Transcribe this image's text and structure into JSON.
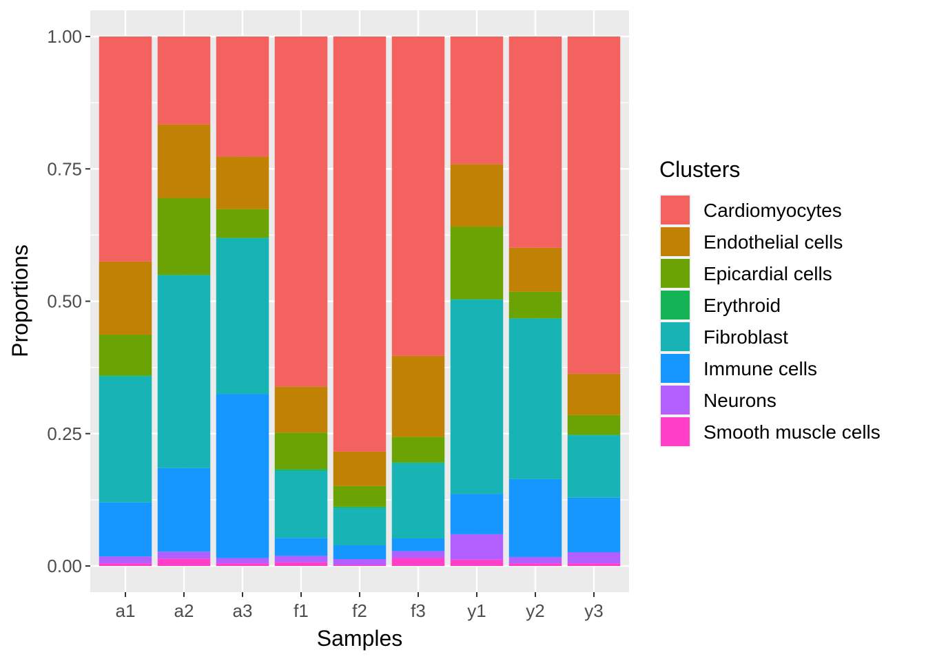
{
  "chart_data": {
    "type": "bar",
    "stacked": true,
    "categories": [
      "a1",
      "a2",
      "a3",
      "f1",
      "f2",
      "f3",
      "y1",
      "y2",
      "y3"
    ],
    "xlabel": "Samples",
    "ylabel": "Proportions",
    "ylim": [
      0,
      1
    ],
    "yticks": [
      "0.00",
      "0.25",
      "0.50",
      "0.75",
      "1.00"
    ],
    "grid": true,
    "legend_title": "Clusters",
    "legend_position": "right",
    "series": [
      {
        "name": "Smooth muscle cells",
        "color": "#FF3FC8",
        "values": [
          0.005,
          0.014,
          0.005,
          0.007,
          0.002,
          0.015,
          0.012,
          0.005,
          0.005
        ]
      },
      {
        "name": "Neurons",
        "color": "#B25FFF",
        "values": [
          0.013,
          0.013,
          0.01,
          0.012,
          0.011,
          0.013,
          0.048,
          0.012,
          0.021
        ]
      },
      {
        "name": "Immune cells",
        "color": "#1597FF",
        "values": [
          0.102,
          0.158,
          0.31,
          0.034,
          0.026,
          0.024,
          0.076,
          0.147,
          0.103
        ]
      },
      {
        "name": "Fibroblast",
        "color": "#18B3B5",
        "values": [
          0.238,
          0.364,
          0.294,
          0.127,
          0.071,
          0.142,
          0.367,
          0.303,
          0.118
        ]
      },
      {
        "name": "Erythroid",
        "color": "#14B356",
        "values": [
          0.002,
          0.001,
          0.001,
          0.003,
          0.002,
          0.002,
          0.001,
          0.001,
          0.001
        ]
      },
      {
        "name": "Epicardial cells",
        "color": "#6BA304",
        "values": [
          0.077,
          0.145,
          0.054,
          0.069,
          0.039,
          0.048,
          0.137,
          0.05,
          0.037
        ]
      },
      {
        "name": "Endothelial cells",
        "color": "#C08105",
        "values": [
          0.138,
          0.139,
          0.099,
          0.087,
          0.065,
          0.153,
          0.118,
          0.083,
          0.078
        ]
      },
      {
        "name": "Cardiomyocytes",
        "color": "#F4625F",
        "values": [
          0.425,
          0.166,
          0.227,
          0.661,
          0.784,
          0.603,
          0.241,
          0.399,
          0.637
        ]
      }
    ]
  }
}
